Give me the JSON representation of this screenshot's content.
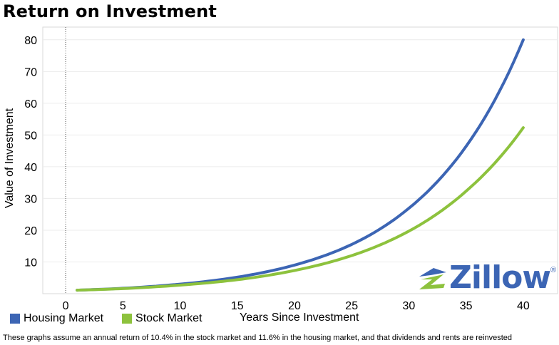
{
  "header": {
    "title": "Return on Investment"
  },
  "chart_data": {
    "type": "line",
    "title": "Return on Investment",
    "xlabel": "Years Since Investment",
    "ylabel": "Value of Investment",
    "xlim": [
      -2,
      43
    ],
    "ylim": [
      0,
      84
    ],
    "xticks": [
      0,
      5,
      10,
      15,
      20,
      25,
      30,
      35,
      40
    ],
    "yticks": [
      10,
      20,
      30,
      40,
      50,
      60,
      70,
      80
    ],
    "grid": "horizontal",
    "series": [
      {
        "name": "Housing Market",
        "color": "#3c65b4",
        "x": [
          1,
          5,
          10,
          15,
          20,
          25,
          30,
          35,
          40
        ],
        "y": [
          1.1,
          1.7,
          3.0,
          5.2,
          9.0,
          15.5,
          26.9,
          46.4,
          80.0
        ]
      },
      {
        "name": "Stock Market",
        "color": "#8dc23d",
        "x": [
          1,
          5,
          10,
          15,
          20,
          25,
          30,
          35,
          40
        ],
        "y": [
          1.1,
          1.6,
          2.7,
          4.4,
          7.3,
          12.0,
          19.7,
          32.3,
          52.3
        ]
      }
    ],
    "legend": "bottom-left"
  },
  "watermark": {
    "text": "Zillow",
    "mark": "®"
  },
  "footnote": "These graphs assume an annual return of 10.4% in the stock market and 11.6% in the housing market, and that dividends and rents are reinvested"
}
